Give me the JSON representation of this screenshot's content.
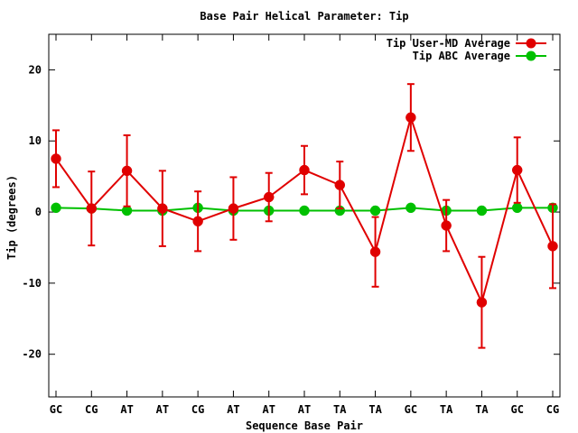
{
  "chart_data": {
    "type": "line",
    "title": "Base Pair Helical Parameter: Tip",
    "xlabel": "Sequence Base Pair",
    "ylabel": "Tip (degrees)",
    "categories": [
      "GC",
      "CG",
      "AT",
      "AT",
      "CG",
      "AT",
      "AT",
      "AT",
      "TA",
      "TA",
      "GC",
      "TA",
      "TA",
      "GC",
      "CG"
    ],
    "ylim": [
      -26,
      25
    ],
    "yticks": [
      -20,
      -10,
      0,
      10,
      20
    ],
    "grid": false,
    "legend_position": "top-right",
    "series": [
      {
        "name": "Tip User-MD Average",
        "color": "#e00000",
        "marker": "circle",
        "values": [
          7.5,
          0.5,
          5.8,
          0.5,
          -1.3,
          0.5,
          2.1,
          5.9,
          3.8,
          -5.6,
          13.3,
          -1.9,
          -12.7,
          5.9,
          -4.8
        ],
        "error": [
          4.0,
          5.2,
          5.0,
          5.3,
          4.2,
          4.4,
          3.4,
          3.4,
          3.3,
          4.9,
          4.7,
          3.6,
          6.4,
          4.6,
          5.9
        ]
      },
      {
        "name": "Tip ABC Average",
        "color": "#00c000",
        "marker": "circle",
        "values": [
          0.6,
          0.5,
          0.2,
          0.2,
          0.6,
          0.2,
          0.2,
          0.2,
          0.2,
          0.2,
          0.6,
          0.2,
          0.2,
          0.6,
          0.6
        ]
      }
    ]
  }
}
